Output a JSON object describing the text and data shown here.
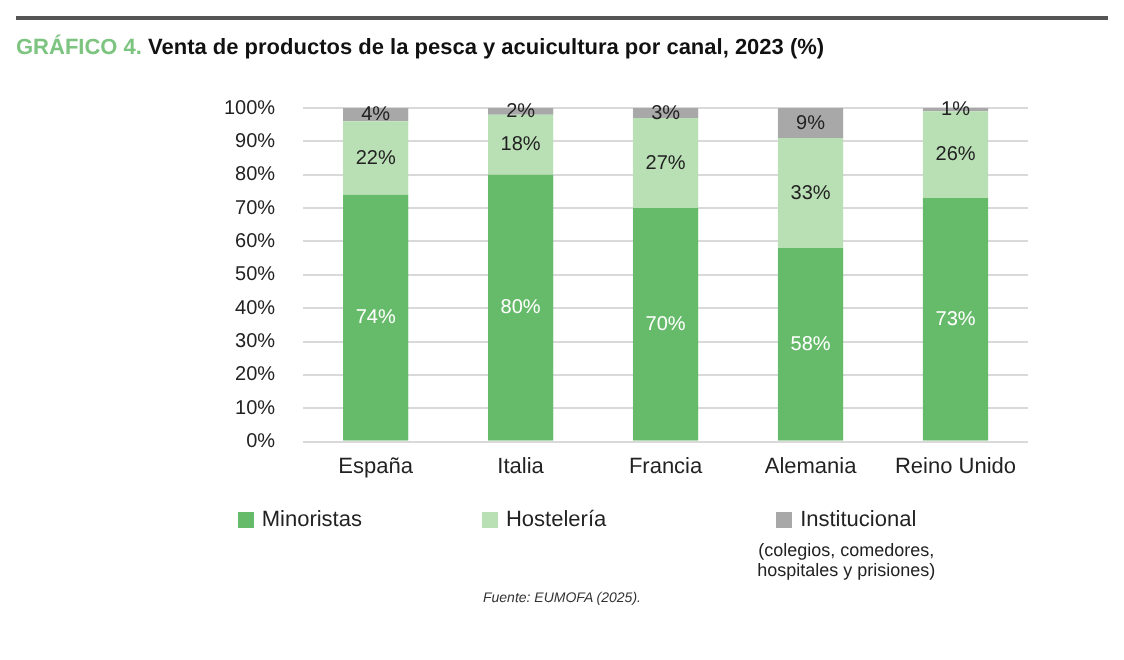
{
  "chart_data": {
    "type": "bar",
    "title": "GRÁFICO 4. Venta de productos de la pesca y acuicultura por canal, 2023 (%)",
    "categories": [
      "España",
      "Italia",
      "Francia",
      "Alemania",
      "Reino Unido"
    ],
    "stacked": true,
    "series": [
      {
        "name": "Minoristas",
        "color": "#66bb6a",
        "values": [
          74,
          80,
          70,
          58,
          73
        ],
        "value_labels": [
          "74%",
          "80%",
          "70%",
          "58%",
          "73%"
        ]
      },
      {
        "name": "Hostelería",
        "color": "#b9dfb4",
        "values": [
          22,
          18,
          27,
          33,
          26
        ],
        "value_labels": [
          "22%",
          "18%",
          "27%",
          "33%",
          "26%"
        ]
      },
      {
        "name": "Institucional",
        "color": "#a8a8a8",
        "values": [
          4,
          2,
          3,
          9,
          1
        ],
        "value_labels": [
          "4%",
          "2%",
          "3%",
          "9%",
          "1%"
        ]
      }
    ],
    "ylim": [
      0,
      100
    ],
    "yticks": [
      {
        "value": 0,
        "label": "0%"
      },
      {
        "value": 10,
        "label": "10%"
      },
      {
        "value": 20,
        "label": "20%"
      },
      {
        "value": 30,
        "label": "30%"
      },
      {
        "value": 40,
        "label": "40%"
      },
      {
        "value": 50,
        "label": "50%"
      },
      {
        "value": 60,
        "label": "60%"
      },
      {
        "value": 70,
        "label": "70%"
      },
      {
        "value": 80,
        "label": "80%"
      },
      {
        "value": 90,
        "label": "90%"
      },
      {
        "value": 100,
        "label": "100%"
      }
    ],
    "grid": "y",
    "legend": "bottom",
    "annotations": [
      "(colegios, comedores, hospitales y prisiones)",
      "Fuente: EUMOFA (2025)."
    ]
  }
}
